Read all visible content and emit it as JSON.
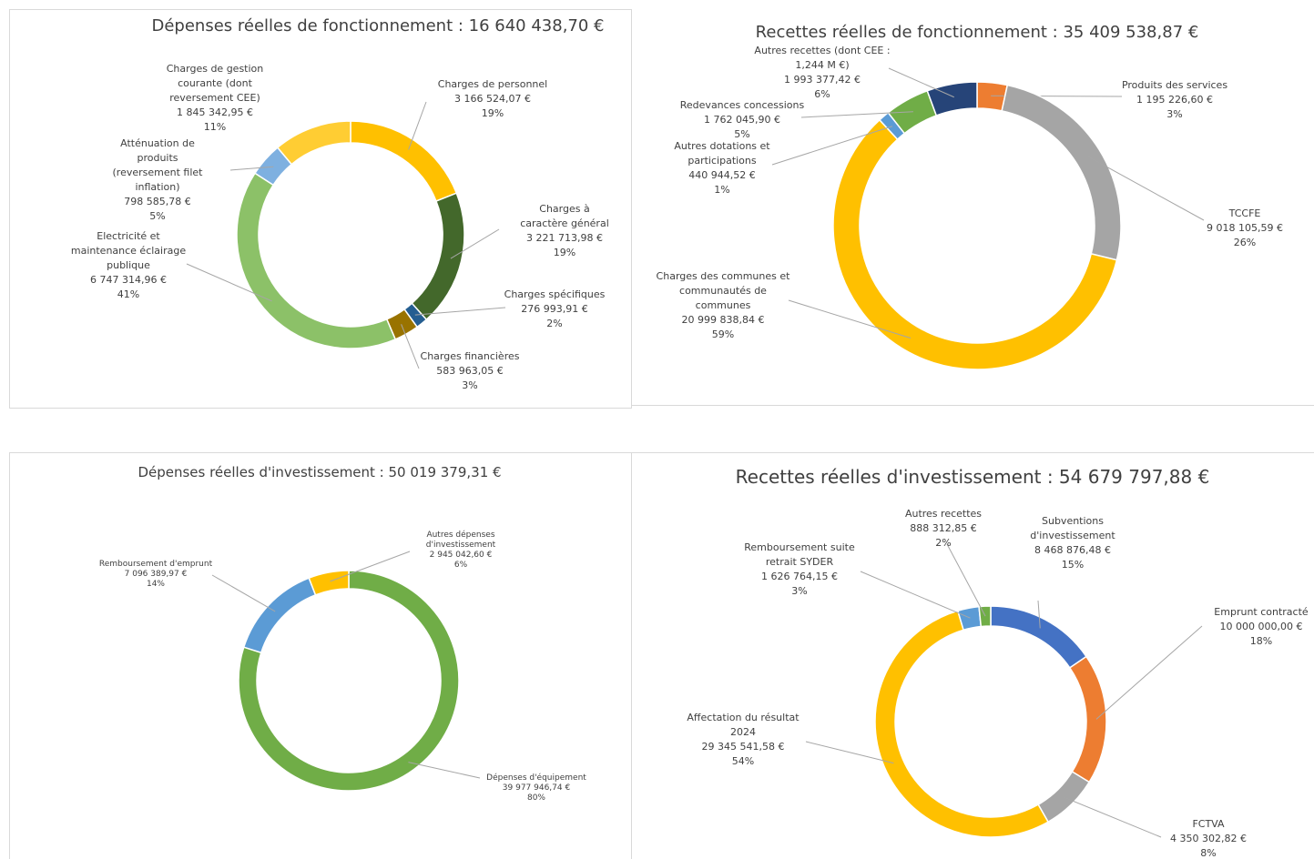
{
  "chart_data": [
    {
      "type": "donut",
      "title": "Dépenses réelles de fonctionnement : 16 640 438,70 €",
      "categories": [
        "Charges de personnel",
        "Charges à caractère général",
        "Charges spécifiques",
        "Charges financières",
        "Electricité et maintenance éclairage publique",
        "Atténuation de produits (reversement filet inflation)",
        "Charges de gestion courante (dont reversement CEE)"
      ],
      "values": [
        3166524.07,
        3221713.98,
        276993.91,
        583963.05,
        6747314.96,
        798585.78,
        1845342.95
      ],
      "value_labels": [
        "3 166 524,07 €",
        "3 221 713,98 €",
        "276 993,91 €",
        "583 963,05 €",
        "6 747 314,96 €",
        "798 585,78 €",
        "1 845 342,95 €"
      ],
      "percent_labels": [
        "19%",
        "19%",
        "2%",
        "3%",
        "41%",
        "5%",
        "11%"
      ],
      "colors": [
        "#ffc000",
        "#43682b",
        "#255e91",
        "#997300",
        "#8cc168",
        "#7eb0e0",
        "#ffcd33"
      ]
    },
    {
      "type": "donut",
      "title": "Recettes réelles de fonctionnement : 35 409 538,87 €",
      "categories": [
        "Produits des services",
        "TCCFE",
        "Charges des communes et communautés de communes",
        "Autres dotations et participations",
        "Redevances concessions",
        "Autres recettes (dont CEE : 1,244 M €)"
      ],
      "values": [
        1195226.6,
        9018105.59,
        20999838.84,
        440944.52,
        1762045.9,
        1993377.42
      ],
      "value_labels": [
        "1 195 226,60 €",
        "9 018 105,59 €",
        "20 999 838,84 €",
        "440 944,52 €",
        "1 762 045,90 €",
        "1 993 377,42 €"
      ],
      "percent_labels": [
        "3%",
        "26%",
        "59%",
        "1%",
        "5%",
        "6%"
      ],
      "colors": [
        "#ed7d31",
        "#a5a5a5",
        "#ffc000",
        "#5b9bd5",
        "#70ad47",
        "#264478"
      ]
    },
    {
      "type": "donut",
      "title": "Dépenses réelles d'investissement : 50 019 379,31 €",
      "categories": [
        "Dépenses d'équipement",
        "Remboursement d'emprunt",
        "Autres dépenses d'investissement"
      ],
      "values": [
        39977946.74,
        7096389.97,
        2945042.6
      ],
      "value_labels": [
        "39 977 946,74 €",
        "7 096 389,97 €",
        "2 945 042,60 €"
      ],
      "percent_labels": [
        "80%",
        "14%",
        "6%"
      ],
      "colors": [
        "#70ad47",
        "#5b9bd5",
        "#ffc000"
      ]
    },
    {
      "type": "donut",
      "title": "Recettes réelles d'investissement : 54 679 797,88 €",
      "categories": [
        "Subventions d'investissement",
        "Emprunt contracté",
        "FCTVA",
        "Affectation du résultat 2024",
        "Remboursement suite retrait SYDER",
        "Autres recettes"
      ],
      "values": [
        8468876.48,
        10000000.0,
        4350302.82,
        29345541.58,
        1626764.15,
        888312.85
      ],
      "value_labels": [
        "8 468 876,48 €",
        "10 000 000,00 €",
        "4 350 302,82 €",
        "29 345 541,58 €",
        "1 626 764,15 €",
        "888 312,85 €"
      ],
      "percent_labels": [
        "15%",
        "18%",
        "8%",
        "54%",
        "3%",
        "2%"
      ],
      "colors": [
        "#4472c4",
        "#ed7d31",
        "#a5a5a5",
        "#ffc000",
        "#5b9bd5",
        "#70ad47"
      ]
    }
  ]
}
